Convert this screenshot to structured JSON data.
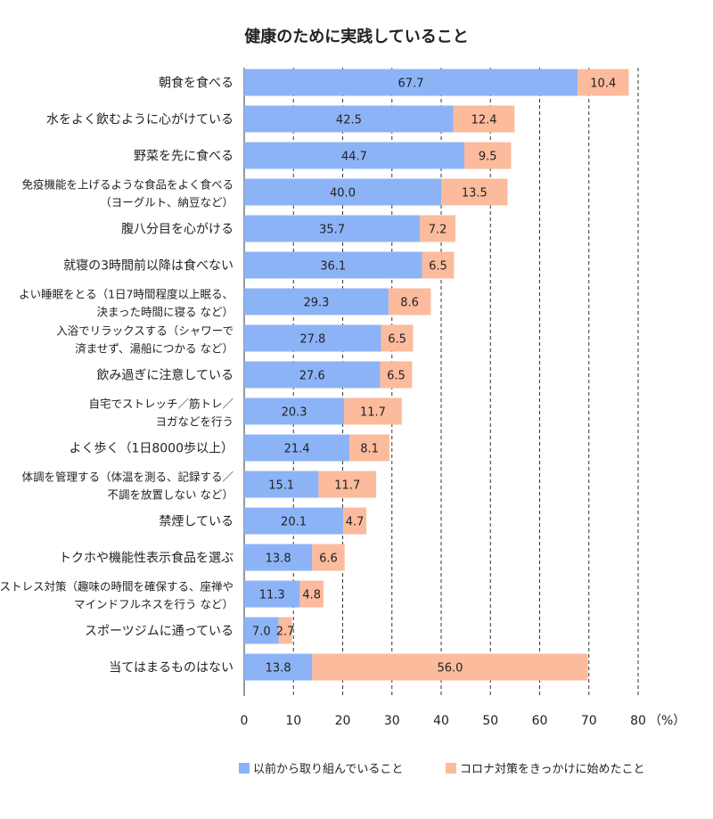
{
  "chart_data": {
    "type": "bar",
    "stacked": true,
    "orientation": "horizontal",
    "title": "健康のために実践していること",
    "categories": [
      [
        "朝食を食べる"
      ],
      [
        "水をよく飲むように心がけている"
      ],
      [
        "野菜を先に食べる"
      ],
      [
        "免疫機能を上げるような食品をよく食べる",
        "（ヨーグルト、納豆など）"
      ],
      [
        "腹八分目を心がける"
      ],
      [
        "就寝の3時間前以降は食べない"
      ],
      [
        "よい睡眠をとる（1日7時間程度以上眠る、",
        "決まった時間に寝る など）"
      ],
      [
        "入浴でリラックスする（シャワーで",
        "済ませず、湯船につかる など）"
      ],
      [
        "飲み過ぎに注意している"
      ],
      [
        "自宅でストレッチ／筋トレ／",
        "ヨガなどを行う"
      ],
      [
        "よく歩く（1日8000歩以上）"
      ],
      [
        "体調を管理する（体温を測る、記録する／",
        "不調を放置しない など）"
      ],
      [
        "禁煙している"
      ],
      [
        "トクホや機能性表示食品を選ぶ"
      ],
      [
        "ストレス対策（趣味の時間を確保する、座禅や",
        "マインドフルネスを行う など）"
      ],
      [
        "スポーツジムに通っている"
      ],
      [
        "当てはまるものはない"
      ]
    ],
    "series": [
      {
        "name": "以前から取り組んでいること",
        "color": "#8db3f7",
        "values": [
          67.7,
          42.5,
          44.7,
          40.0,
          35.7,
          36.1,
          29.3,
          27.8,
          27.6,
          20.3,
          21.4,
          15.1,
          20.1,
          13.8,
          11.3,
          7.0,
          13.8
        ]
      },
      {
        "name": "コロナ対策をきっかけに始めたこと",
        "color": "#fbbb9c",
        "values": [
          10.4,
          12.4,
          9.5,
          13.5,
          7.2,
          6.5,
          8.6,
          6.5,
          6.5,
          11.7,
          8.1,
          11.7,
          4.7,
          6.6,
          4.8,
          2.7,
          56.0
        ]
      }
    ],
    "xlim": [
      0,
      80
    ],
    "xticks": [
      "0",
      "10",
      "20",
      "30",
      "40",
      "50",
      "60",
      "70",
      "80"
    ],
    "xunit": "（%）",
    "grid": "vertical dashed",
    "legend": "bottom"
  }
}
